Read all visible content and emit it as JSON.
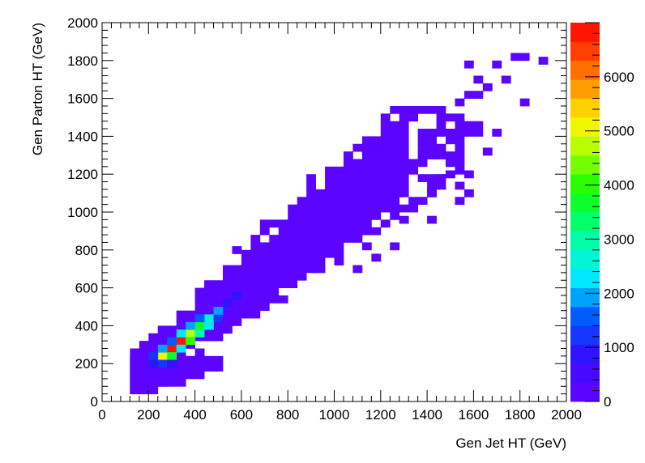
{
  "chart_data": {
    "type": "heatmap",
    "title": "",
    "xlabel": "Gen Jet HT (GeV)",
    "ylabel": "Gen Parton HT (GeV)",
    "xlim": [
      0,
      2000
    ],
    "ylim": [
      0,
      2000
    ],
    "zlim": [
      0,
      7000
    ],
    "x_ticks": [
      "0",
      "200",
      "400",
      "600",
      "800",
      "1000",
      "1200",
      "1400",
      "1600",
      "1800",
      "2000"
    ],
    "y_ticks": [
      "0",
      "200",
      "400",
      "600",
      "800",
      "1000",
      "1200",
      "1400",
      "1600",
      "1800",
      "2000"
    ],
    "z_ticks": [
      "0",
      "1000",
      "2000",
      "3000",
      "4000",
      "5000",
      "6000"
    ],
    "bin_width": 40,
    "grid": false,
    "colorbar_position": "right",
    "peak_cells": [
      {
        "x": 240,
        "y": 220,
        "z": 5200
      },
      {
        "x": 280,
        "y": 260,
        "z": 6900
      },
      {
        "x": 320,
        "y": 300,
        "z": 6700
      },
      {
        "x": 360,
        "y": 340,
        "z": 4800
      },
      {
        "x": 400,
        "y": 380,
        "z": 3600
      },
      {
        "x": 440,
        "y": 420,
        "z": 2600
      },
      {
        "x": 280,
        "y": 220,
        "z": 3800
      },
      {
        "x": 240,
        "y": 260,
        "z": 1800
      },
      {
        "x": 320,
        "y": 260,
        "z": 2100
      },
      {
        "x": 280,
        "y": 300,
        "z": 1500
      },
      {
        "x": 360,
        "y": 300,
        "z": 3900
      },
      {
        "x": 320,
        "y": 340,
        "z": 2400
      },
      {
        "x": 400,
        "y": 340,
        "z": 2900
      },
      {
        "x": 360,
        "y": 380,
        "z": 1900
      },
      {
        "x": 440,
        "y": 380,
        "z": 2400
      },
      {
        "x": 400,
        "y": 420,
        "z": 1400
      },
      {
        "x": 480,
        "y": 420,
        "z": 1300
      },
      {
        "x": 480,
        "y": 460,
        "z": 1800
      },
      {
        "x": 520,
        "y": 500,
        "z": 1000
      },
      {
        "x": 560,
        "y": 540,
        "z": 800
      },
      {
        "x": 200,
        "y": 220,
        "z": 1300
      },
      {
        "x": 240,
        "y": 180,
        "z": 1100
      },
      {
        "x": 200,
        "y": 180,
        "z": 700
      },
      {
        "x": 280,
        "y": 180,
        "z": 900
      }
    ]
  }
}
